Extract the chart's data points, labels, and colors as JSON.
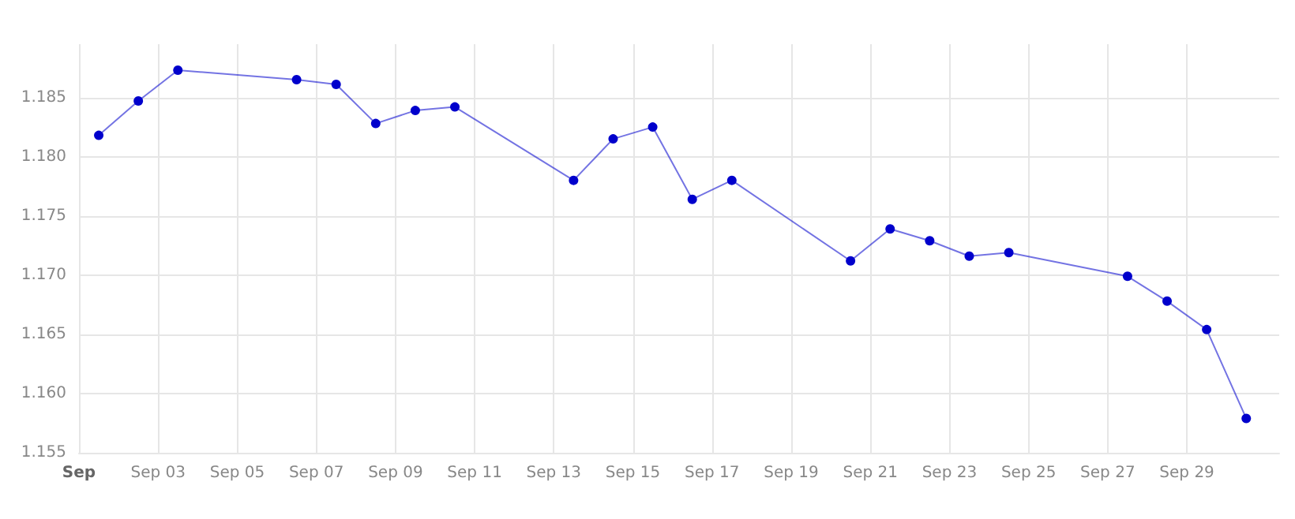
{
  "chart_data": {
    "type": "line",
    "x": [
      "--09-01T12:00",
      "--09-02T12:00",
      "--09-03T12:00",
      "--09-06T12:00",
      "--09-07T12:00",
      "--09-08T12:00",
      "--09-09T12:00",
      "--09-10T12:00",
      "--09-13T12:00",
      "--09-14T12:00",
      "--09-15T12:00",
      "--09-16T12:00",
      "--09-17T12:00",
      "--09-20T12:00",
      "--09-21T12:00",
      "--09-22T12:00",
      "--09-23T12:00",
      "--09-24T12:00",
      "--09-27T12:00",
      "--09-28T12:00",
      "--09-29T12:00",
      "--09-30T12:00"
    ],
    "series": [
      {
        "color": "#0000cc",
        "values": [
          1.1818,
          1.1847,
          1.1873,
          1.1865,
          1.1861,
          1.1828,
          1.1839,
          1.1842,
          1.178,
          1.1815,
          1.1825,
          1.1764,
          1.178,
          1.1712,
          1.1739,
          1.1729,
          1.1716,
          1.1719,
          1.1699,
          1.1678,
          1.1654,
          1.1579
        ]
      }
    ],
    "xlim": [
      "--09-01",
      "--10-01T08:00"
    ],
    "xticks": [
      {
        "value": "--09-01",
        "label": "Sep"
      },
      {
        "value": "--09-03",
        "label": "Sep 03"
      },
      {
        "value": "--09-05",
        "label": "Sep 05"
      },
      {
        "value": "--09-07",
        "label": "Sep 07"
      },
      {
        "value": "--09-09",
        "label": "Sep 09"
      },
      {
        "value": "--09-11",
        "label": "Sep 11"
      },
      {
        "value": "--09-13",
        "label": "Sep 13"
      },
      {
        "value": "--09-15",
        "label": "Sep 15"
      },
      {
        "value": "--09-17",
        "label": "Sep 17"
      },
      {
        "value": "--09-19",
        "label": "Sep 19"
      },
      {
        "value": "--09-21",
        "label": "Sep 21"
      },
      {
        "value": "--09-23",
        "label": "Sep 23"
      },
      {
        "value": "--09-25",
        "label": "Sep 25"
      },
      {
        "value": "--09-27",
        "label": "Sep 27"
      },
      {
        "value": "--09-29",
        "label": "Sep 29"
      }
    ],
    "ylim": [
      1.155,
      1.1895
    ],
    "yticks": [
      1.155,
      {
        "value": 1.16,
        "label": "1.160"
      },
      1.165,
      {
        "value": 1.17,
        "label": "1.170"
      },
      1.175,
      {
        "value": 1.18,
        "label": "1.180"
      },
      1.185
    ],
    "grid": true,
    "marker": "circle",
    "line_style": "solid"
  }
}
